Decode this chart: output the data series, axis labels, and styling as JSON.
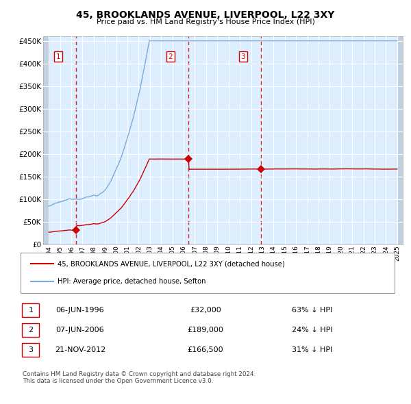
{
  "title": "45, BROOKLANDS AVENUE, LIVERPOOL, L22 3XY",
  "subtitle": "Price paid vs. HM Land Registry's House Price Index (HPI)",
  "legend_red": "45, BROOKLANDS AVENUE, LIVERPOOL, L22 3XY (detached house)",
  "legend_blue": "HPI: Average price, detached house, Sefton",
  "footer": "Contains HM Land Registry data © Crown copyright and database right 2024.\nThis data is licensed under the Open Government Licence v3.0.",
  "sales": [
    {
      "num": 1,
      "date": "06-JUN-1996",
      "price": 32000,
      "pct": "63%",
      "dir": "↓",
      "x_year": 1996.44
    },
    {
      "num": 2,
      "date": "07-JUN-2006",
      "price": 189000,
      "pct": "24%",
      "dir": "↓",
      "x_year": 2006.44
    },
    {
      "num": 3,
      "date": "21-NOV-2012",
      "price": 166500,
      "pct": "31%",
      "dir": "↓",
      "x_year": 2012.89
    }
  ],
  "ylim": [
    0,
    460000
  ],
  "xlim_start": 1993.5,
  "xlim_end": 2025.5,
  "background_chart": "#ddeeff",
  "background_hatch": "#c0d0e0",
  "grid_color": "#ffffff",
  "red_color": "#cc0000",
  "blue_color": "#7aaadd",
  "dashed_color": "#dd2222"
}
